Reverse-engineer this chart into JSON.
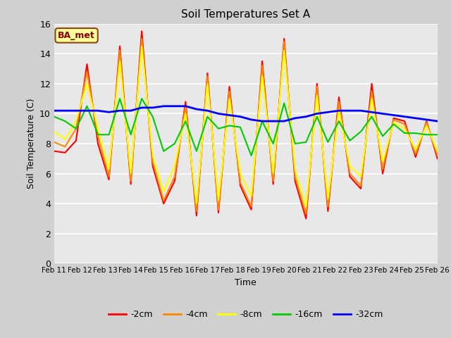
{
  "title": "Soil Temperatures Set A",
  "xlabel": "Time",
  "ylabel": "Soil Temperature (C)",
  "ylim": [
    0,
    16
  ],
  "yticks": [
    0,
    2,
    4,
    6,
    8,
    10,
    12,
    14,
    16
  ],
  "fig_bg_color": "#d0d0d0",
  "plot_bg_color": "#e8e8e8",
  "annotation": "BA_met",
  "legend_labels": [
    "-2cm",
    "-4cm",
    "-8cm",
    "-16cm",
    "-32cm"
  ],
  "line_colors": [
    "#ff0000",
    "#ff8800",
    "#ffff00",
    "#00cc00",
    "#0000ff"
  ],
  "line_widths": [
    1.5,
    1.5,
    1.5,
    1.5,
    2.0
  ],
  "x_labels": [
    "Feb 11",
    "Feb 12",
    "Feb 13",
    "Feb 14",
    "Feb 15",
    "Feb 16",
    "Feb 17",
    "Feb 18",
    "Feb 19",
    "Feb 20",
    "Feb 21",
    "Feb 22",
    "Feb 23",
    "Feb 24",
    "Feb 25",
    "Feb 26"
  ],
  "series": {
    "depth_2cm": [
      7.5,
      7.4,
      8.2,
      13.3,
      8.0,
      5.6,
      14.5,
      5.3,
      15.5,
      6.5,
      4.0,
      5.5,
      10.8,
      3.2,
      12.7,
      3.4,
      11.8,
      5.2,
      3.6,
      13.5,
      5.3,
      15.0,
      5.5,
      3.0,
      12.0,
      3.5,
      11.1,
      5.8,
      5.0,
      12.0,
      6.0,
      9.7,
      9.5,
      7.1,
      9.5,
      7.0
    ],
    "depth_4cm": [
      8.1,
      7.8,
      9.0,
      12.8,
      8.5,
      5.8,
      14.2,
      5.5,
      15.0,
      6.8,
      4.2,
      5.8,
      10.5,
      3.5,
      12.5,
      3.6,
      11.5,
      5.4,
      3.8,
      13.2,
      5.5,
      14.8,
      5.8,
      3.3,
      11.8,
      3.8,
      10.8,
      6.0,
      5.2,
      11.5,
      6.3,
      9.6,
      9.3,
      7.3,
      9.4,
      7.2
    ],
    "depth_8cm": [
      8.8,
      8.3,
      9.5,
      12.0,
      9.0,
      6.3,
      13.5,
      6.0,
      14.5,
      7.2,
      4.8,
      6.5,
      10.0,
      4.0,
      12.0,
      4.2,
      11.0,
      6.0,
      4.5,
      12.5,
      6.0,
      14.2,
      6.3,
      3.8,
      11.2,
      4.3,
      10.2,
      6.5,
      5.8,
      11.0,
      6.8,
      9.4,
      9.0,
      7.6,
      9.2,
      7.5
    ],
    "depth_16cm": [
      9.8,
      9.5,
      9.0,
      10.5,
      8.6,
      8.6,
      11.0,
      8.6,
      11.0,
      9.8,
      7.5,
      8.0,
      9.5,
      7.5,
      9.8,
      9.0,
      9.2,
      9.1,
      7.2,
      9.5,
      8.0,
      10.7,
      8.0,
      8.1,
      9.8,
      8.1,
      9.5,
      8.2,
      8.8,
      9.8,
      8.5,
      9.3,
      8.7,
      8.7,
      8.6,
      8.6
    ],
    "depth_32cm": [
      10.2,
      10.2,
      10.2,
      10.2,
      10.2,
      10.1,
      10.2,
      10.2,
      10.4,
      10.4,
      10.5,
      10.5,
      10.5,
      10.3,
      10.2,
      10.0,
      9.9,
      9.8,
      9.6,
      9.5,
      9.5,
      9.5,
      9.7,
      9.8,
      10.0,
      10.1,
      10.2,
      10.2,
      10.2,
      10.1,
      10.0,
      9.9,
      9.8,
      9.7,
      9.6,
      9.5
    ]
  }
}
